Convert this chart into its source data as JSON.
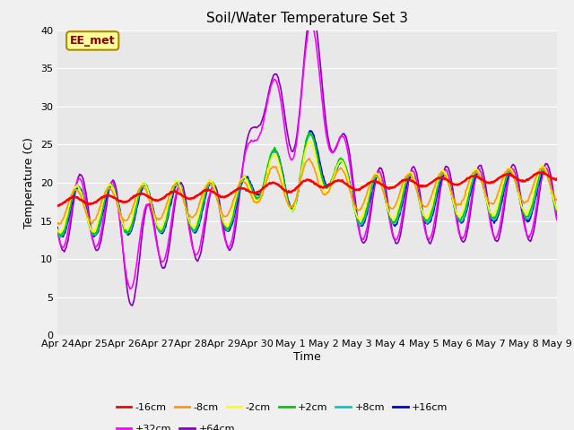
{
  "title": "Soil/Water Temperature Set 3",
  "xlabel": "Time",
  "ylabel": "Temperature (C)",
  "ylim": [
    0,
    40
  ],
  "yticks": [
    0,
    5,
    10,
    15,
    20,
    25,
    30,
    35,
    40
  ],
  "background_color": "#e8e8e8",
  "fig_bg": "#f0f0f0",
  "annotation_text": "EE_met",
  "annotation_color": "#880000",
  "annotation_bg": "#ffff99",
  "annotation_edge": "#aa8800",
  "series": {
    "-16cm": {
      "color": "#ff0000",
      "lw": 1.8,
      "zorder": 9
    },
    "-8cm": {
      "color": "#ff9900",
      "lw": 1.2,
      "zorder": 8
    },
    "-2cm": {
      "color": "#ffff00",
      "lw": 1.2,
      "zorder": 7
    },
    "+2cm": {
      "color": "#00cc00",
      "lw": 1.2,
      "zorder": 6
    },
    "+8cm": {
      "color": "#00cccc",
      "lw": 1.2,
      "zorder": 5
    },
    "+16cm": {
      "color": "#0000cc",
      "lw": 1.2,
      "zorder": 4
    },
    "+32cm": {
      "color": "#ff00ff",
      "lw": 1.2,
      "zorder": 3
    },
    "+64cm": {
      "color": "#8800bb",
      "lw": 1.2,
      "zorder": 2
    }
  },
  "xtick_labels": [
    "Apr 24",
    "Apr 25",
    "Apr 26",
    "Apr 27",
    "Apr 28",
    "Apr 29",
    "Apr 30",
    "May 1",
    "May 2",
    "May 3",
    "May 4",
    "May 5",
    "May 6",
    "May 7",
    "May 8",
    "May 9"
  ],
  "n_days": 15,
  "pts_per_day": 48,
  "title_fontsize": 11,
  "axis_fontsize": 9,
  "tick_fontsize": 8,
  "legend_fontsize": 8
}
